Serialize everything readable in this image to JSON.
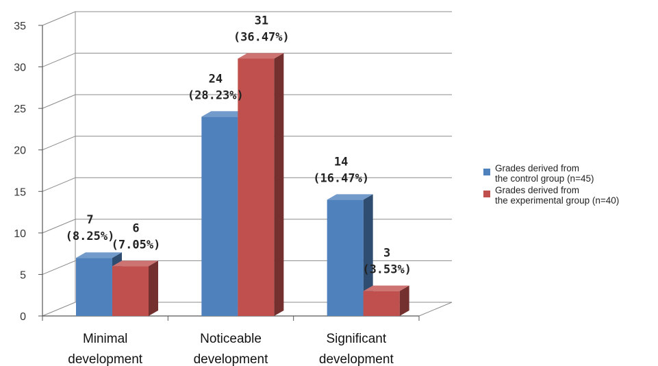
{
  "chart_data": {
    "type": "bar",
    "categories": [
      "Minimal\ndevelopment",
      "Noticeable\ndevelopment",
      "Significant\ndevelopment"
    ],
    "series": [
      {
        "name": "Grades derived from\nthe control group (n=45)",
        "values": [
          7,
          24,
          14
        ],
        "labels": [
          "7\n(8.25%)",
          "24\n(28.23%)",
          "14\n(16.47%)"
        ],
        "color": "#4F81BD"
      },
      {
        "name": "Grades derived from\nthe experimental group (n=40)",
        "values": [
          6,
          31,
          3
        ],
        "labels": [
          "6\n(7.05%)",
          "31\n(36.47%)",
          "3\n(3.53%)"
        ],
        "color": "#C0504D"
      }
    ],
    "ylim": [
      0,
      35
    ],
    "yticks": [
      "0",
      "5",
      "10",
      "15",
      "20",
      "25",
      "30",
      "35"
    ],
    "grid": true,
    "legend_position": "right",
    "style": "3d-clustered-column"
  }
}
